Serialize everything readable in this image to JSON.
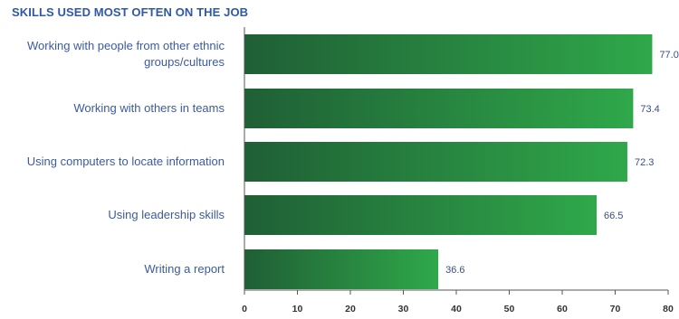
{
  "chart_data": {
    "type": "bar",
    "orientation": "horizontal",
    "title": "SKILLS USED MOST OFTEN ON THE JOB",
    "categories": [
      [
        "Working with people from other ethnic",
        "groups/cultures"
      ],
      [
        "Working with others in teams"
      ],
      [
        "Using computers to locate information"
      ],
      [
        "Using leadership skills"
      ],
      [
        "Writing a report"
      ]
    ],
    "values": [
      77.0,
      73.4,
      72.3,
      66.5,
      36.6
    ],
    "value_labels": [
      "77.0",
      "73.4",
      "72.3",
      "66.5",
      "36.6"
    ],
    "xticks": [
      "0",
      "10",
      "20",
      "30",
      "40",
      "50",
      "60",
      "70",
      "80"
    ],
    "xlim": [
      0,
      80
    ],
    "grid": false,
    "colors": {
      "bar_dark": "#1f5f35",
      "bar_light": "#2fa84a",
      "title": "#2f58a6",
      "label": "#3b5aa0"
    }
  }
}
